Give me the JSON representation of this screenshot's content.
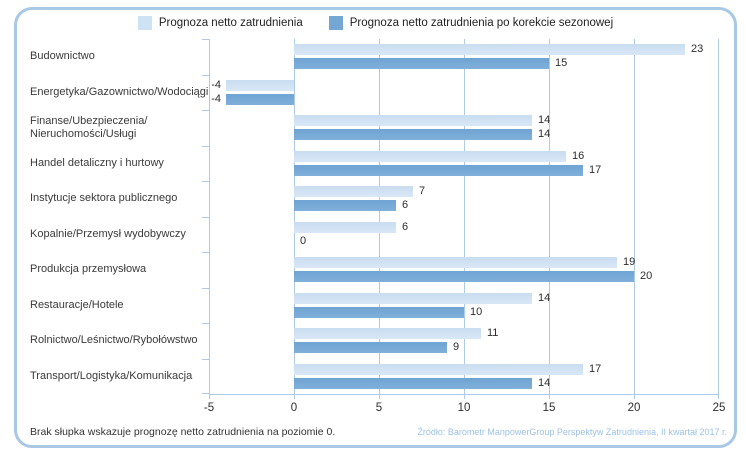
{
  "chart_data": {
    "type": "bar",
    "orientation": "horizontal",
    "categories": [
      [
        "Budownictwo"
      ],
      [
        "Energetyka/Gazownictwo/Wodociągi"
      ],
      [
        "Finanse/Ubezpieczenia/",
        "Nieruchomości/Usługi"
      ],
      [
        "Handel detaliczny i hurtowy"
      ],
      [
        "Instytucje sektora publicznego"
      ],
      [
        "Kopalnie/Przemysł wydobywczy"
      ],
      [
        "Produkcja przemysłowa"
      ],
      [
        "Restauracje/Hotele"
      ],
      [
        "Rolnictwo/Leśnictwo/Rybołówstwo"
      ],
      [
        "Transport/Logistyka/Komunikacja"
      ]
    ],
    "series": [
      {
        "name": "Prognoza netto zatrudnienia",
        "color_top": "#c9ddf0",
        "color_bottom": "#d8e7f6",
        "swatch_color": "#cfe2f3",
        "values": [
          23,
          -4,
          14,
          16,
          7,
          6,
          19,
          14,
          11,
          17
        ]
      },
      {
        "name": "Prognoza netto zatrudnienia po korekcie sezonowej",
        "color_top": "#6fa3d2",
        "color_bottom": "#7fb0da",
        "swatch_color": "#74a7d4",
        "values": [
          15,
          -4,
          14,
          17,
          6,
          0,
          20,
          10,
          9,
          14
        ]
      }
    ],
    "xlim": [
      -5,
      25
    ],
    "xticks": [
      -5,
      0,
      5,
      10,
      15,
      20,
      25
    ],
    "grid": true,
    "legend_position": "top",
    "zero_note_value_display": "0"
  },
  "footer": {
    "note": "Brak słupka wskazuje prognozę netto zatrudnienia na poziomie 0.",
    "source": "Źródło: Barometr ManpowerGroup Perspektyw Zatrudnienia, II kwartał 2017 r."
  },
  "colors": {
    "panel_border": "#a9c8e5",
    "gridline": "#adcbe7",
    "bar_light": "#cde0f2",
    "bar_dark": "#76a9d5",
    "source_text": "#9cc2e3",
    "text": "#2d2d2d"
  }
}
